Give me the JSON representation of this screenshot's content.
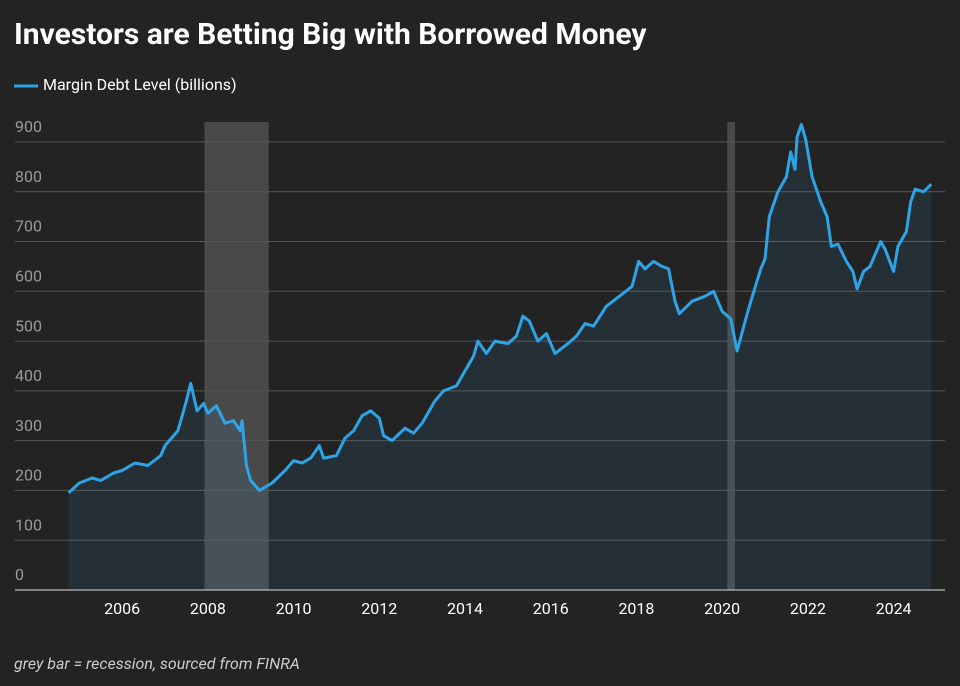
{
  "chart_data": {
    "type": "line",
    "title": "Investors are Betting Big with Borrowed Money",
    "note": "grey bar = recession, sourced from FINRA",
    "x": [
      2004.75,
      2005.0,
      2005.3,
      2005.5,
      2005.8,
      2006.0,
      2006.3,
      2006.6,
      2006.9,
      2007.0,
      2007.3,
      2007.5,
      2007.6,
      2007.75,
      2007.9,
      2008.0,
      2008.2,
      2008.4,
      2008.6,
      2008.75,
      2008.8,
      2008.9,
      2009.0,
      2009.2,
      2009.5,
      2009.8,
      2010.0,
      2010.2,
      2010.4,
      2010.6,
      2010.7,
      2011.0,
      2011.2,
      2011.4,
      2011.6,
      2011.8,
      2012.0,
      2012.1,
      2012.3,
      2012.6,
      2012.8,
      2013.0,
      2013.3,
      2013.5,
      2013.8,
      2014.0,
      2014.2,
      2014.3,
      2014.5,
      2014.7,
      2015.0,
      2015.2,
      2015.35,
      2015.5,
      2015.7,
      2015.9,
      2016.1,
      2016.4,
      2016.6,
      2016.8,
      2017.0,
      2017.3,
      2017.6,
      2017.9,
      2018.05,
      2018.2,
      2018.4,
      2018.6,
      2018.75,
      2018.9,
      2019.0,
      2019.3,
      2019.6,
      2019.8,
      2020.0,
      2020.2,
      2020.35,
      2020.6,
      2020.9,
      2021.0,
      2021.1,
      2021.3,
      2021.5,
      2021.6,
      2021.7,
      2021.75,
      2021.85,
      2021.95,
      2022.1,
      2022.3,
      2022.45,
      2022.55,
      2022.7,
      2022.9,
      2023.05,
      2023.15,
      2023.3,
      2023.45,
      2023.7,
      2023.8,
      2024.0,
      2024.1,
      2024.3,
      2024.4,
      2024.5,
      2024.7,
      2024.88
    ],
    "series": [
      {
        "name": "Margin Debt Level (billions)",
        "color": "#2ea3e6",
        "values": [
          195,
          215,
          225,
          220,
          235,
          240,
          255,
          250,
          270,
          290,
          320,
          380,
          415,
          360,
          375,
          355,
          370,
          335,
          340,
          320,
          340,
          250,
          220,
          200,
          215,
          240,
          260,
          255,
          265,
          290,
          265,
          270,
          305,
          320,
          350,
          360,
          345,
          310,
          300,
          325,
          315,
          335,
          380,
          400,
          410,
          440,
          470,
          500,
          475,
          500,
          495,
          510,
          550,
          540,
          500,
          515,
          475,
          495,
          510,
          535,
          530,
          570,
          590,
          610,
          660,
          645,
          660,
          650,
          645,
          580,
          555,
          580,
          590,
          600,
          560,
          545,
          480,
          560,
          645,
          665,
          750,
          800,
          830,
          880,
          845,
          910,
          935,
          905,
          830,
          780,
          750,
          690,
          695,
          660,
          640,
          605,
          640,
          650,
          700,
          685,
          640,
          690,
          720,
          780,
          805,
          800,
          815
        ]
      }
    ],
    "recessions": [
      [
        2007.92,
        2009.42
      ],
      [
        2020.12,
        2020.3
      ]
    ],
    "xlim": [
      2003.5,
      2025.2
    ],
    "xticks": [
      2006,
      2008,
      2010,
      2012,
      2014,
      2016,
      2018,
      2020,
      2022,
      2024
    ],
    "ylim": [
      0,
      940
    ],
    "yticks": [
      0,
      100,
      200,
      300,
      400,
      500,
      600,
      700,
      800,
      900
    ],
    "grid": true
  }
}
